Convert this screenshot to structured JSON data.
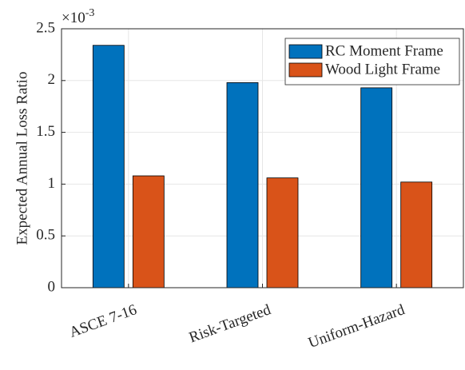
{
  "chart_data": {
    "type": "bar",
    "y_label": "Expected Annual Loss Ratio",
    "y_exponent": "×10",
    "y_exponent_power": "-3",
    "categories": [
      "ASCE 7-16",
      "Risk-Targeted",
      "Uniform-Hazard"
    ],
    "series": [
      {
        "name": "RC Moment Frame",
        "color": "#0072bd",
        "values": [
          2.34,
          1.98,
          1.93
        ]
      },
      {
        "name": "Wood Light Frame",
        "color": "#d95319",
        "values": [
          1.08,
          1.06,
          1.02
        ]
      }
    ],
    "ylim": [
      0,
      2.5
    ],
    "yticks": [
      0,
      0.5,
      1,
      1.5,
      2,
      2.5
    ],
    "grid": true,
    "legend": "top-right"
  }
}
